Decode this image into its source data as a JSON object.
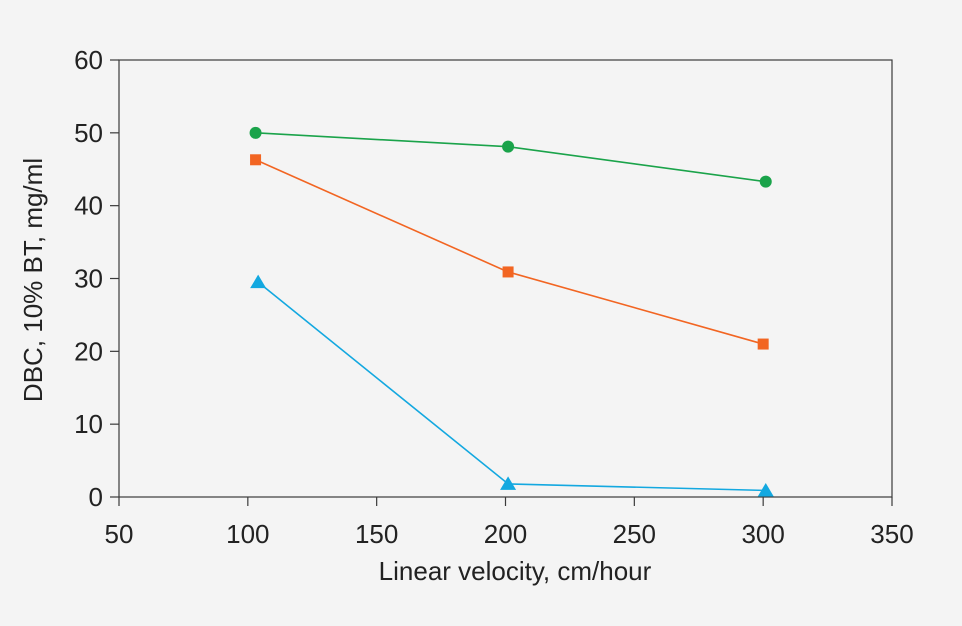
{
  "chart_data": {
    "type": "line",
    "title": "",
    "xlabel": "Linear velocity, cm/hour",
    "ylabel": "DBC, 10% BT, mg/ml",
    "xlim": [
      50,
      350
    ],
    "ylim": [
      0,
      60
    ],
    "xticks": [
      50,
      100,
      150,
      200,
      250,
      300,
      350
    ],
    "yticks": [
      0,
      10,
      20,
      30,
      40,
      50,
      60
    ],
    "grid": false,
    "legend": "none",
    "series": [
      {
        "name": "green-circles",
        "marker": "circle",
        "color": "#1aa34a",
        "x": [
          103,
          201,
          301
        ],
        "y": [
          50,
          48.1,
          43.3
        ]
      },
      {
        "name": "orange-squares",
        "marker": "square",
        "color": "#f26522",
        "x": [
          103,
          201,
          300
        ],
        "y": [
          46.3,
          30.9,
          21
        ]
      },
      {
        "name": "blue-triangles",
        "marker": "triangle",
        "color": "#13a8e0",
        "x": [
          104,
          201,
          301
        ],
        "y": [
          29.5,
          1.8,
          0.9
        ]
      }
    ]
  }
}
